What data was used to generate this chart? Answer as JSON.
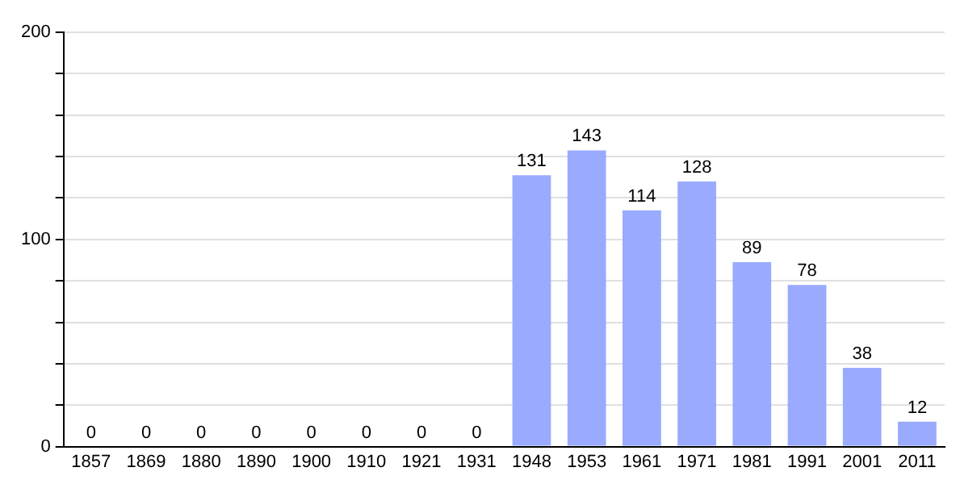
{
  "chart_data": {
    "type": "bar",
    "categories": [
      "1857",
      "1869",
      "1880",
      "1890",
      "1900",
      "1910",
      "1921",
      "1931",
      "1948",
      "1953",
      "1961",
      "1971",
      "1981",
      "1991",
      "2001",
      "2011"
    ],
    "values": [
      0,
      0,
      0,
      0,
      0,
      0,
      0,
      0,
      131,
      143,
      114,
      128,
      89,
      78,
      38,
      12
    ],
    "color": "#99aaff",
    "ylim": [
      0,
      200
    ],
    "yticks": [
      0,
      {
        "value": 20,
        "label": null
      },
      {
        "value": 40,
        "label": null
      },
      {
        "value": 60,
        "label": null
      },
      {
        "value": 80,
        "label": null
      },
      100,
      {
        "value": 120,
        "label": null
      },
      {
        "value": 140,
        "label": null
      },
      {
        "value": 160,
        "label": null
      },
      {
        "value": 180,
        "label": null
      },
      200
    ],
    "grid": "y",
    "data_labels": true,
    "legend": false
  }
}
